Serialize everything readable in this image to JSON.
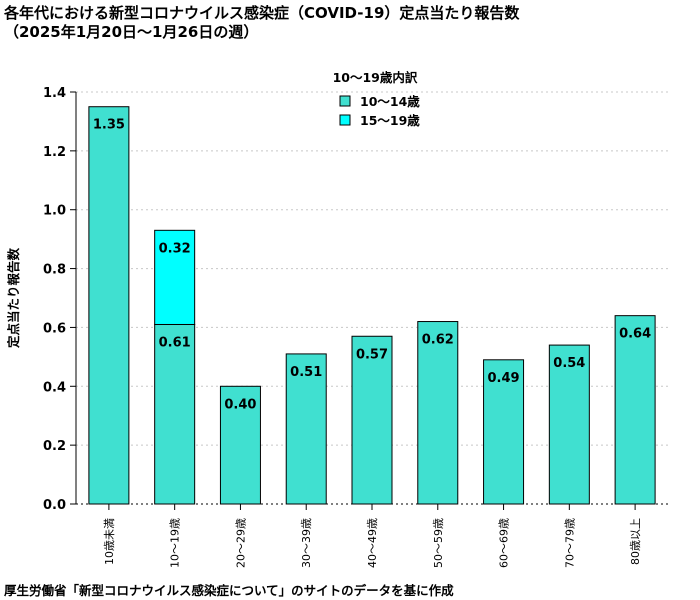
{
  "title": {
    "line1": "各年代における新型コロナウイルス感染症（COVID-19）定点当たり報告数",
    "line2": "（2025年1月20日〜1月26日の週）"
  },
  "source": "厚生労働省「新型コロナウイルス感染症について」のサイトのデータを基に作成",
  "colors": {
    "base": "#40e0d0",
    "upper": "#00ffff"
  },
  "chart_data": {
    "type": "bar",
    "stacked": true,
    "categories": [
      "10歳未満",
      "10〜19歳",
      "20〜29歳",
      "30〜39歳",
      "40〜49歳",
      "50〜59歳",
      "60〜69歳",
      "70〜79歳",
      "80歳以上"
    ],
    "values": [
      1.35,
      0.61,
      0.4,
      0.51,
      0.57,
      0.62,
      0.49,
      0.54,
      0.64
    ],
    "stack": {
      "category": "10〜19歳",
      "base": 0.61,
      "upper": 0.32
    },
    "legend": {
      "title": "10〜19歳内訳",
      "items": [
        "10〜14歳",
        "15〜19歳"
      ],
      "position": "top-center"
    },
    "xlabel": "",
    "ylabel": "定点当たり報告数",
    "ylim": [
      0,
      1.4
    ],
    "yticks": [
      0.0,
      0.2,
      0.4,
      0.6,
      0.8,
      1.0,
      1.2,
      1.4
    ],
    "ytick_labels": [
      "0.0",
      "0.2",
      "0.4",
      "0.6",
      "0.8",
      "1.0",
      "1.2",
      "1.4"
    ],
    "grid": "horizontal-dotted"
  }
}
